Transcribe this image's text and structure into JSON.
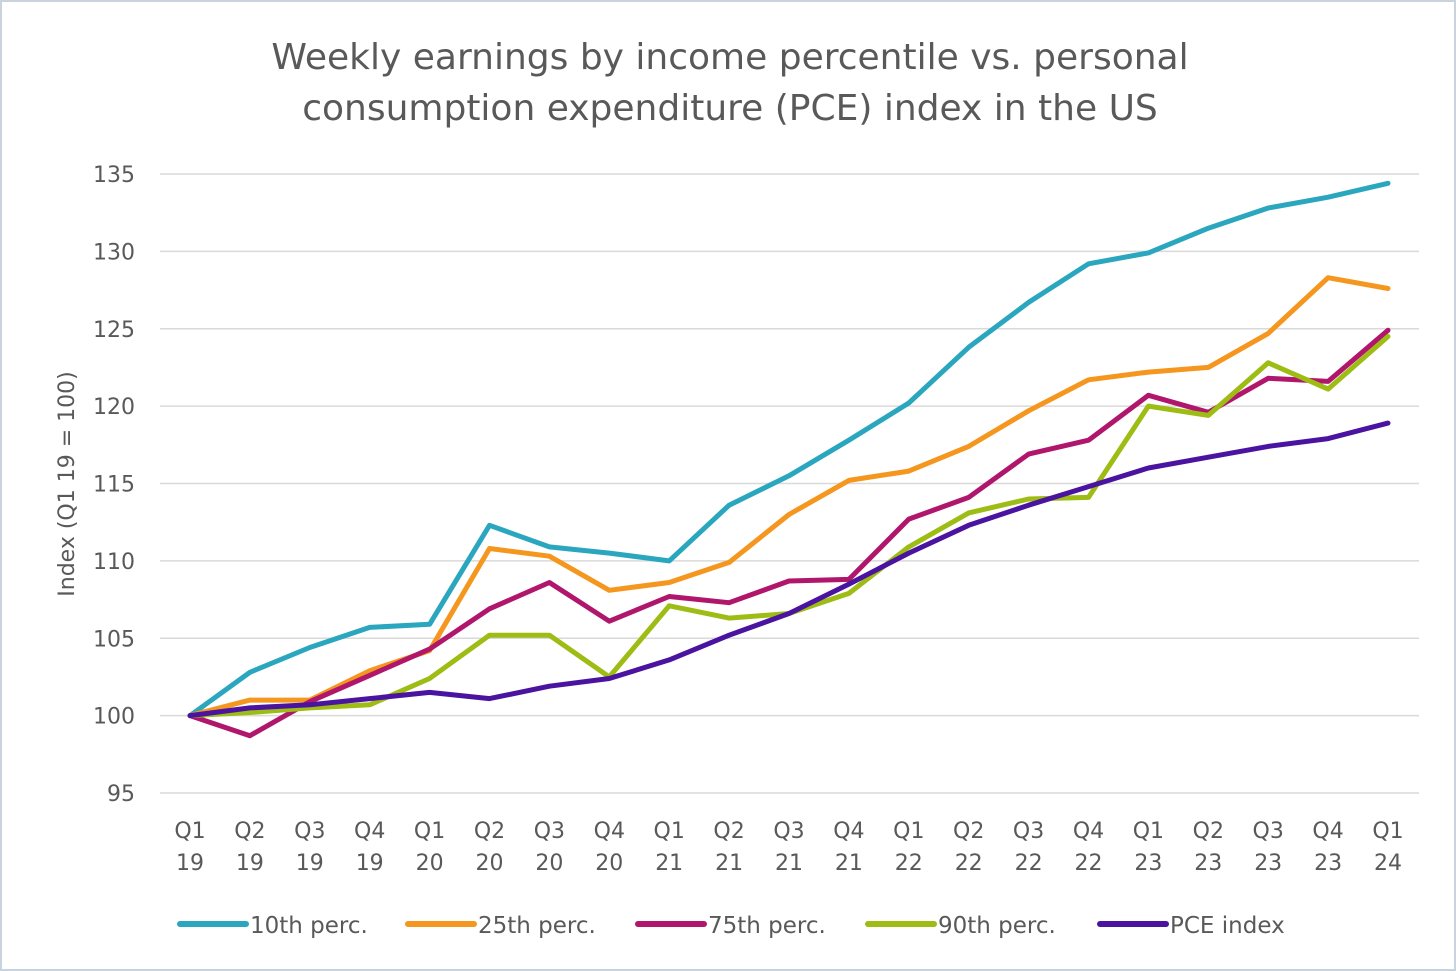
{
  "chart_data": {
    "type": "line",
    "title": [
      "Weekly earnings by income percentile vs. personal",
      "consumption expenditure (PCE) index in the US"
    ],
    "ylabel": "Index (Q1 19 = 100)",
    "ylim": [
      95,
      135
    ],
    "yticks": [
      "95",
      "100",
      "105",
      "110",
      "115",
      "120",
      "125",
      "130",
      "135"
    ],
    "grid": true,
    "legend_position": "bottom",
    "categories": [
      [
        "Q1",
        "19"
      ],
      [
        "Q2",
        "19"
      ],
      [
        "Q3",
        "19"
      ],
      [
        "Q4",
        "19"
      ],
      [
        "Q1",
        "20"
      ],
      [
        "Q2",
        "20"
      ],
      [
        "Q3",
        "20"
      ],
      [
        "Q4",
        "20"
      ],
      [
        "Q1",
        "21"
      ],
      [
        "Q2",
        "21"
      ],
      [
        "Q3",
        "21"
      ],
      [
        "Q4",
        "21"
      ],
      [
        "Q1",
        "22"
      ],
      [
        "Q2",
        "22"
      ],
      [
        "Q3",
        "22"
      ],
      [
        "Q4",
        "22"
      ],
      [
        "Q1",
        "23"
      ],
      [
        "Q2",
        "23"
      ],
      [
        "Q3",
        "23"
      ],
      [
        "Q4",
        "23"
      ],
      [
        "Q1",
        "24"
      ]
    ],
    "series": [
      {
        "name": "10th perc.",
        "color": "#2aa7be",
        "values": [
          100.0,
          102.8,
          104.4,
          105.7,
          105.9,
          112.3,
          110.9,
          110.5,
          110.0,
          113.6,
          115.5,
          117.8,
          120.2,
          123.8,
          126.7,
          129.2,
          129.9,
          131.5,
          132.8,
          133.5,
          134.4
        ]
      },
      {
        "name": "25th perc.",
        "color": "#f5961e",
        "values": [
          100.0,
          101.0,
          101.0,
          102.9,
          104.2,
          110.8,
          110.3,
          108.1,
          108.6,
          109.9,
          113.0,
          115.2,
          115.8,
          117.4,
          119.7,
          121.7,
          122.2,
          122.5,
          124.7,
          128.3,
          127.6
        ]
      },
      {
        "name": "75th perc.",
        "color": "#b0176c",
        "values": [
          100.0,
          98.7,
          100.9,
          102.6,
          104.3,
          106.9,
          108.6,
          106.1,
          107.7,
          107.3,
          108.7,
          108.8,
          112.7,
          114.1,
          116.9,
          117.8,
          120.7,
          119.6,
          121.8,
          121.6,
          124.9
        ]
      },
      {
        "name": "90th perc.",
        "color": "#9dbc14",
        "values": [
          100.0,
          100.2,
          100.5,
          100.7,
          102.4,
          105.2,
          105.2,
          102.5,
          107.1,
          106.3,
          106.6,
          107.9,
          110.9,
          113.1,
          114.0,
          114.1,
          120.0,
          119.4,
          122.8,
          121.1,
          124.5
        ]
      },
      {
        "name": "PCE index",
        "color": "#4a13a0",
        "values": [
          100.0,
          100.5,
          100.7,
          101.1,
          101.5,
          101.1,
          101.9,
          102.4,
          103.6,
          105.2,
          106.6,
          108.5,
          110.5,
          112.3,
          113.6,
          114.8,
          116.0,
          116.7,
          117.4,
          117.9,
          118.9
        ]
      }
    ]
  }
}
